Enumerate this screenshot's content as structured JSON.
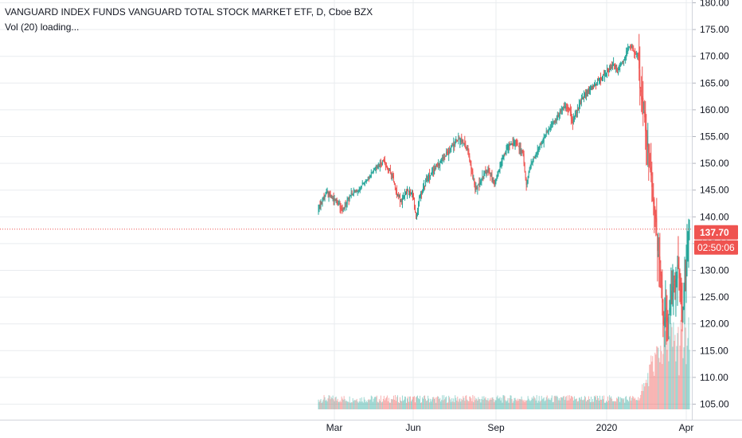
{
  "header": {
    "title": "VANGUARD INDEX FUNDS VANGUARD TOTAL STOCK MARKET ETF, D, Cboe BZX",
    "indicator": "Vol (20) loading..."
  },
  "price_axis": {
    "ticks": [
      "180.00",
      "175.00",
      "170.00",
      "165.00",
      "160.00",
      "155.00",
      "150.00",
      "145.00",
      "140.00",
      "135.00",
      "130.00",
      "125.00",
      "120.00",
      "115.00",
      "110.00",
      "105.00"
    ],
    "last_price": "137.70",
    "countdown": "02:50:06"
  },
  "time_axis": {
    "labels": [
      "Mar",
      "Jun",
      "Sep",
      "2020",
      "Apr"
    ]
  },
  "colors": {
    "up": "#26a69a",
    "down": "#ef5350",
    "grid": "#e9ecef",
    "text": "#131722",
    "price_line": "#ef5350"
  },
  "chart_data": {
    "type": "candlestick",
    "symbol": "VANGUARD INDEX FUNDS VANGUARD TOTAL STOCK MARKET ETF",
    "interval": "D",
    "exchange": "Cboe BZX",
    "ylim": [
      102,
      181
    ],
    "y_ticks": [
      180,
      175,
      170,
      165,
      160,
      155,
      150,
      145,
      140,
      135,
      130,
      125,
      120,
      115,
      110,
      105
    ],
    "x_labels": [
      "Mar",
      "Jun",
      "Sep",
      "2020",
      "Apr"
    ],
    "last_price": 137.7,
    "countdown": "02:50:06",
    "grid": true,
    "close_anchors": [
      [
        0,
        141.5
      ],
      [
        10,
        144.5
      ],
      [
        18,
        143.5
      ],
      [
        26,
        142.5
      ],
      [
        30,
        141.0
      ],
      [
        40,
        144.0
      ],
      [
        52,
        145.5
      ],
      [
        62,
        147.5
      ],
      [
        72,
        149.5
      ],
      [
        82,
        150.5
      ],
      [
        86,
        149.0
      ],
      [
        92,
        148.0
      ],
      [
        96,
        145.0
      ],
      [
        104,
        143.0
      ],
      [
        112,
        145.0
      ],
      [
        118,
        144.0
      ],
      [
        122,
        139.8
      ],
      [
        126,
        143.5
      ],
      [
        136,
        147.0
      ],
      [
        146,
        149.0
      ],
      [
        156,
        151.0
      ],
      [
        166,
        153.0
      ],
      [
        176,
        154.5
      ],
      [
        186,
        153.0
      ],
      [
        190,
        150.0
      ],
      [
        196,
        145.0
      ],
      [
        204,
        147.0
      ],
      [
        212,
        149.0
      ],
      [
        220,
        146.0
      ],
      [
        228,
        150.0
      ],
      [
        236,
        153.0
      ],
      [
        246,
        154.0
      ],
      [
        256,
        151.5
      ],
      [
        260,
        146.0
      ],
      [
        266,
        150.0
      ],
      [
        276,
        153.0
      ],
      [
        286,
        156.0
      ],
      [
        296,
        158.0
      ],
      [
        306,
        160.5
      ],
      [
        314,
        160.0
      ],
      [
        318,
        157.5
      ],
      [
        324,
        160.0
      ],
      [
        332,
        162.5
      ],
      [
        342,
        164.0
      ],
      [
        350,
        165.5
      ],
      [
        358,
        166.5
      ],
      [
        366,
        168.0
      ],
      [
        370,
        168.5
      ],
      [
        374,
        167.0
      ],
      [
        380,
        169.0
      ],
      [
        386,
        171.0
      ],
      [
        392,
        172.0
      ],
      [
        396,
        170.5
      ],
      [
        400,
        170.0
      ],
      [
        402,
        164.0
      ],
      [
        406,
        160.0
      ],
      [
        410,
        155.0
      ],
      [
        413,
        152.0
      ],
      [
        418,
        143.0
      ],
      [
        422,
        139.0
      ],
      [
        425,
        133.0
      ],
      [
        428,
        129.0
      ],
      [
        431,
        120.0
      ],
      [
        434,
        123.0
      ],
      [
        437,
        119.0
      ],
      [
        440,
        124.0
      ],
      [
        443,
        127.0
      ],
      [
        446,
        126.0
      ],
      [
        449,
        131.0
      ],
      [
        452,
        127.0
      ],
      [
        455,
        122.0
      ],
      [
        458,
        128.0
      ],
      [
        461,
        133.0
      ],
      [
        464,
        137.7
      ]
    ]
  }
}
